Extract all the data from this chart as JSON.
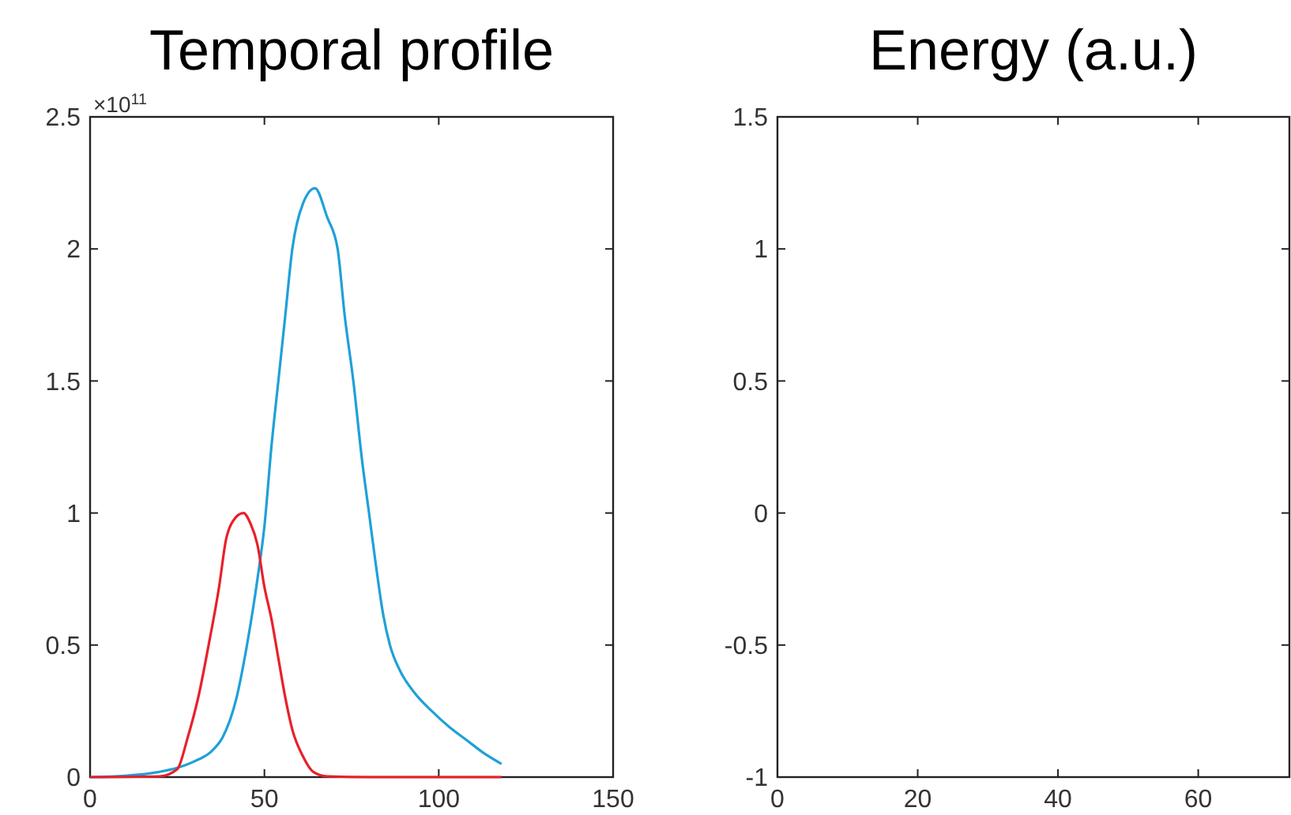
{
  "chart_data": [
    {
      "type": "line",
      "title": "Temporal profile",
      "annotations": [
        "×10$^{11}$"
      ],
      "xlim": [
        0,
        150
      ],
      "xticks": [
        0,
        50,
        100,
        150
      ],
      "ylim": [
        0,
        2.5
      ],
      "yticks": [
        0,
        0.5,
        1,
        1.5,
        2,
        2.5
      ],
      "grid": false,
      "series": [
        {
          "color": "#1fa0d8",
          "x": [
            0,
            10,
            20,
            25,
            30,
            35,
            38,
            42,
            45,
            48,
            50,
            52,
            54,
            56,
            58,
            61,
            64.5,
            68,
            71,
            73,
            75.5,
            78,
            80,
            82,
            84,
            86,
            89,
            93,
            98,
            103,
            108,
            113,
            118
          ],
          "values": [
            0,
            0.005,
            0.02,
            0.035,
            0.06,
            0.1,
            0.15,
            0.3,
            0.5,
            0.75,
            0.95,
            1.25,
            1.5,
            1.75,
            2.0,
            2.17,
            2.23,
            2.12,
            2.0,
            1.75,
            1.5,
            1.2,
            1.0,
            0.8,
            0.62,
            0.5,
            0.4,
            0.32,
            0.25,
            0.19,
            0.14,
            0.09,
            0.05
          ]
        },
        {
          "color": "#e8202a",
          "x": [
            0,
            20,
            25,
            28,
            31,
            34,
            37,
            39,
            41,
            44,
            46,
            48,
            50,
            52,
            54,
            56,
            58,
            61,
            64,
            68,
            80,
            118
          ],
          "values": [
            0,
            0.003,
            0.03,
            0.15,
            0.3,
            0.5,
            0.72,
            0.9,
            0.97,
            1.0,
            0.96,
            0.88,
            0.72,
            0.6,
            0.45,
            0.3,
            0.18,
            0.08,
            0.02,
            0.003,
            0,
            0
          ]
        }
      ]
    },
    {
      "type": "line",
      "title": "Energy (a.u.)",
      "xlim": [
        0,
        73
      ],
      "xticks": [
        0,
        20,
        40,
        60
      ],
      "ylim": [
        -1,
        1.5
      ],
      "yticks": [
        -1,
        -0.5,
        0,
        0.5,
        1,
        1.5
      ],
      "grid": false
    }
  ]
}
